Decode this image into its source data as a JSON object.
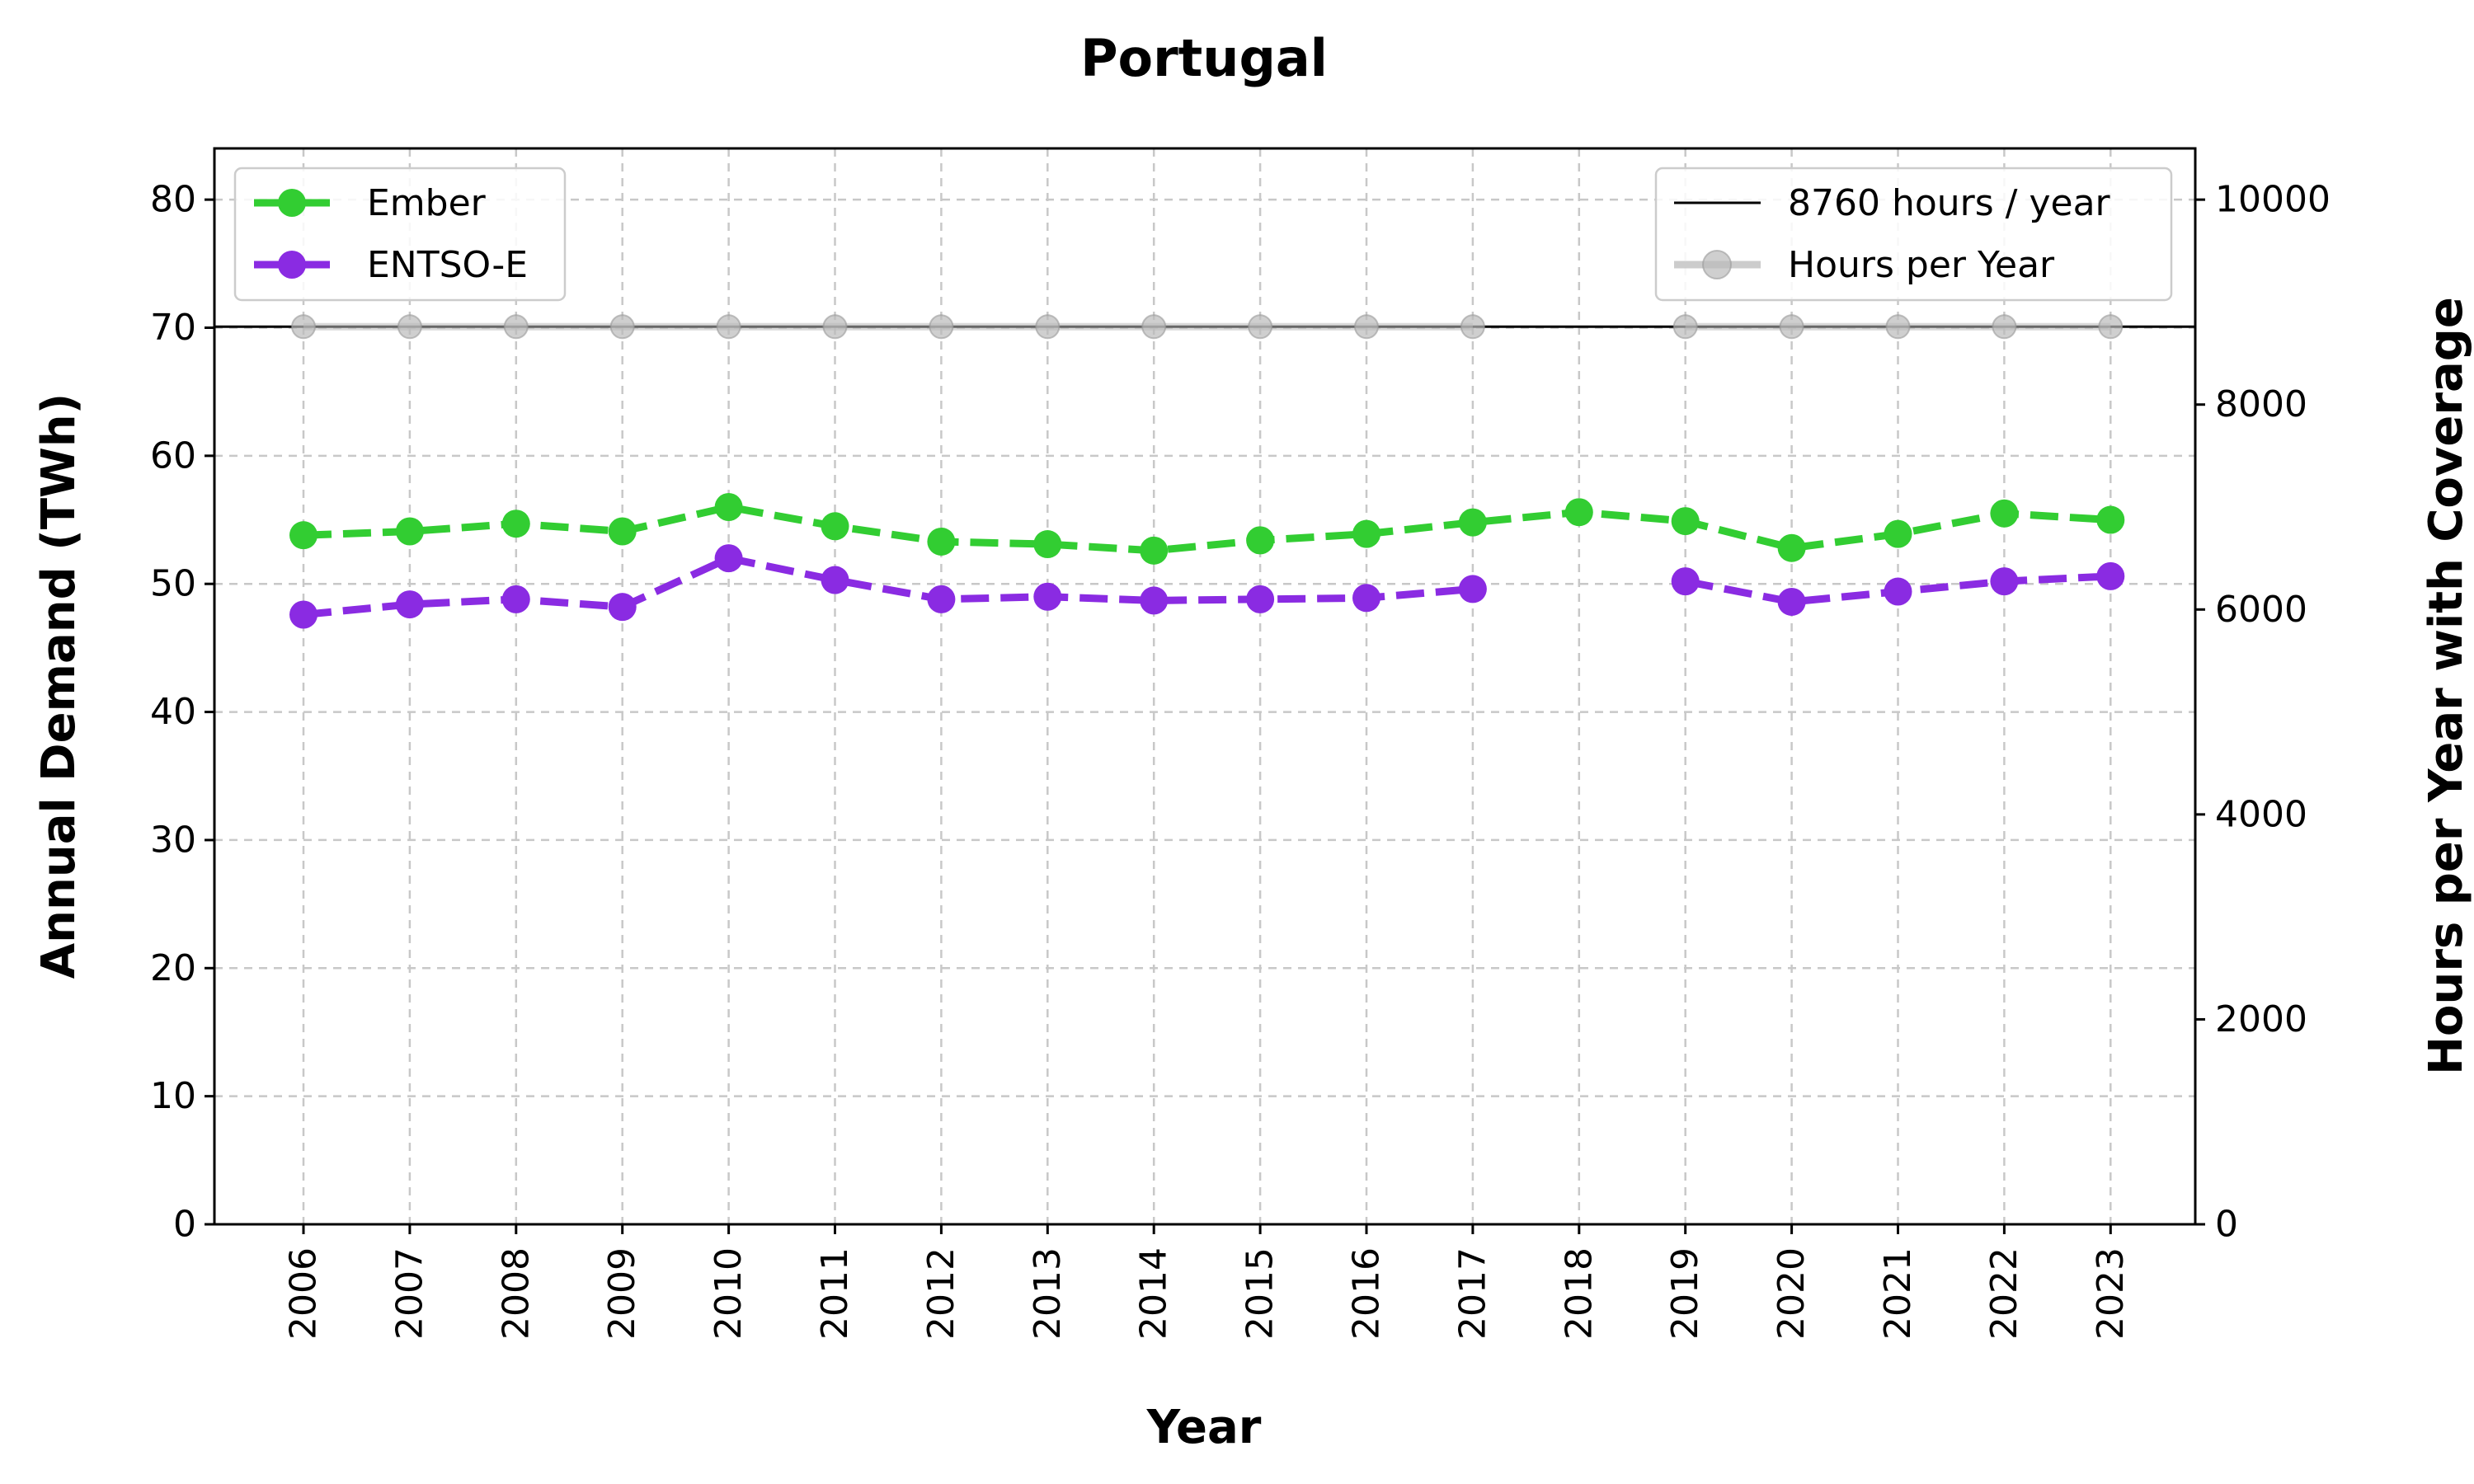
{
  "chart_data": {
    "type": "line",
    "title": "Portugal",
    "xlabel": "Year",
    "ylabel": "Annual Demand (TWh)",
    "y2label": "Hours per Year with Coverage",
    "x": [
      "2006",
      "2007",
      "2008",
      "2009",
      "2010",
      "2011",
      "2012",
      "2013",
      "2014",
      "2015",
      "2016",
      "2017",
      "2018",
      "2019",
      "2020",
      "2021",
      "2022",
      "2023"
    ],
    "ylim": [
      0,
      84
    ],
    "y2lim": [
      0,
      10500
    ],
    "yticks": [
      0,
      10,
      20,
      30,
      40,
      50,
      60,
      70,
      80
    ],
    "y2ticks": [
      0,
      2000,
      4000,
      6000,
      8000,
      10000
    ],
    "grid": true,
    "series": [
      {
        "name": "Ember",
        "axis": "left",
        "color": "#32cd32",
        "style": "dashed",
        "marker": "circle",
        "values": [
          53.8,
          54.1,
          54.7,
          54.1,
          56.0,
          54.5,
          53.3,
          53.1,
          52.6,
          53.4,
          53.9,
          54.8,
          55.6,
          54.9,
          52.8,
          53.9,
          55.5,
          55.0
        ]
      },
      {
        "name": "ENTSO-E",
        "axis": "left",
        "color": "#8a2be2",
        "style": "dashed",
        "marker": "circle",
        "values": [
          47.6,
          48.4,
          48.8,
          48.2,
          52.0,
          50.3,
          48.8,
          49.0,
          48.7,
          48.8,
          48.9,
          49.6,
          null,
          50.2,
          48.6,
          49.4,
          50.2,
          50.6
        ]
      },
      {
        "name": "Hours per Year",
        "axis": "right",
        "color": "#bbbbbb",
        "style": "solid",
        "marker": "circle",
        "values": [
          8760,
          8760,
          8760,
          8760,
          8760,
          8760,
          8760,
          8760,
          8760,
          8760,
          8760,
          8760,
          null,
          8760,
          8760,
          8760,
          8760,
          8760
        ]
      }
    ],
    "reference_lines": [
      {
        "name": "8760 hours / year",
        "axis": "right",
        "value": 8760,
        "color": "#000000"
      }
    ],
    "legends": [
      {
        "placement": "top-left",
        "entries": [
          "Ember",
          "ENTSO-E"
        ]
      },
      {
        "placement": "top-right",
        "entries": [
          "8760 hours / year",
          "Hours per Year"
        ]
      }
    ]
  }
}
